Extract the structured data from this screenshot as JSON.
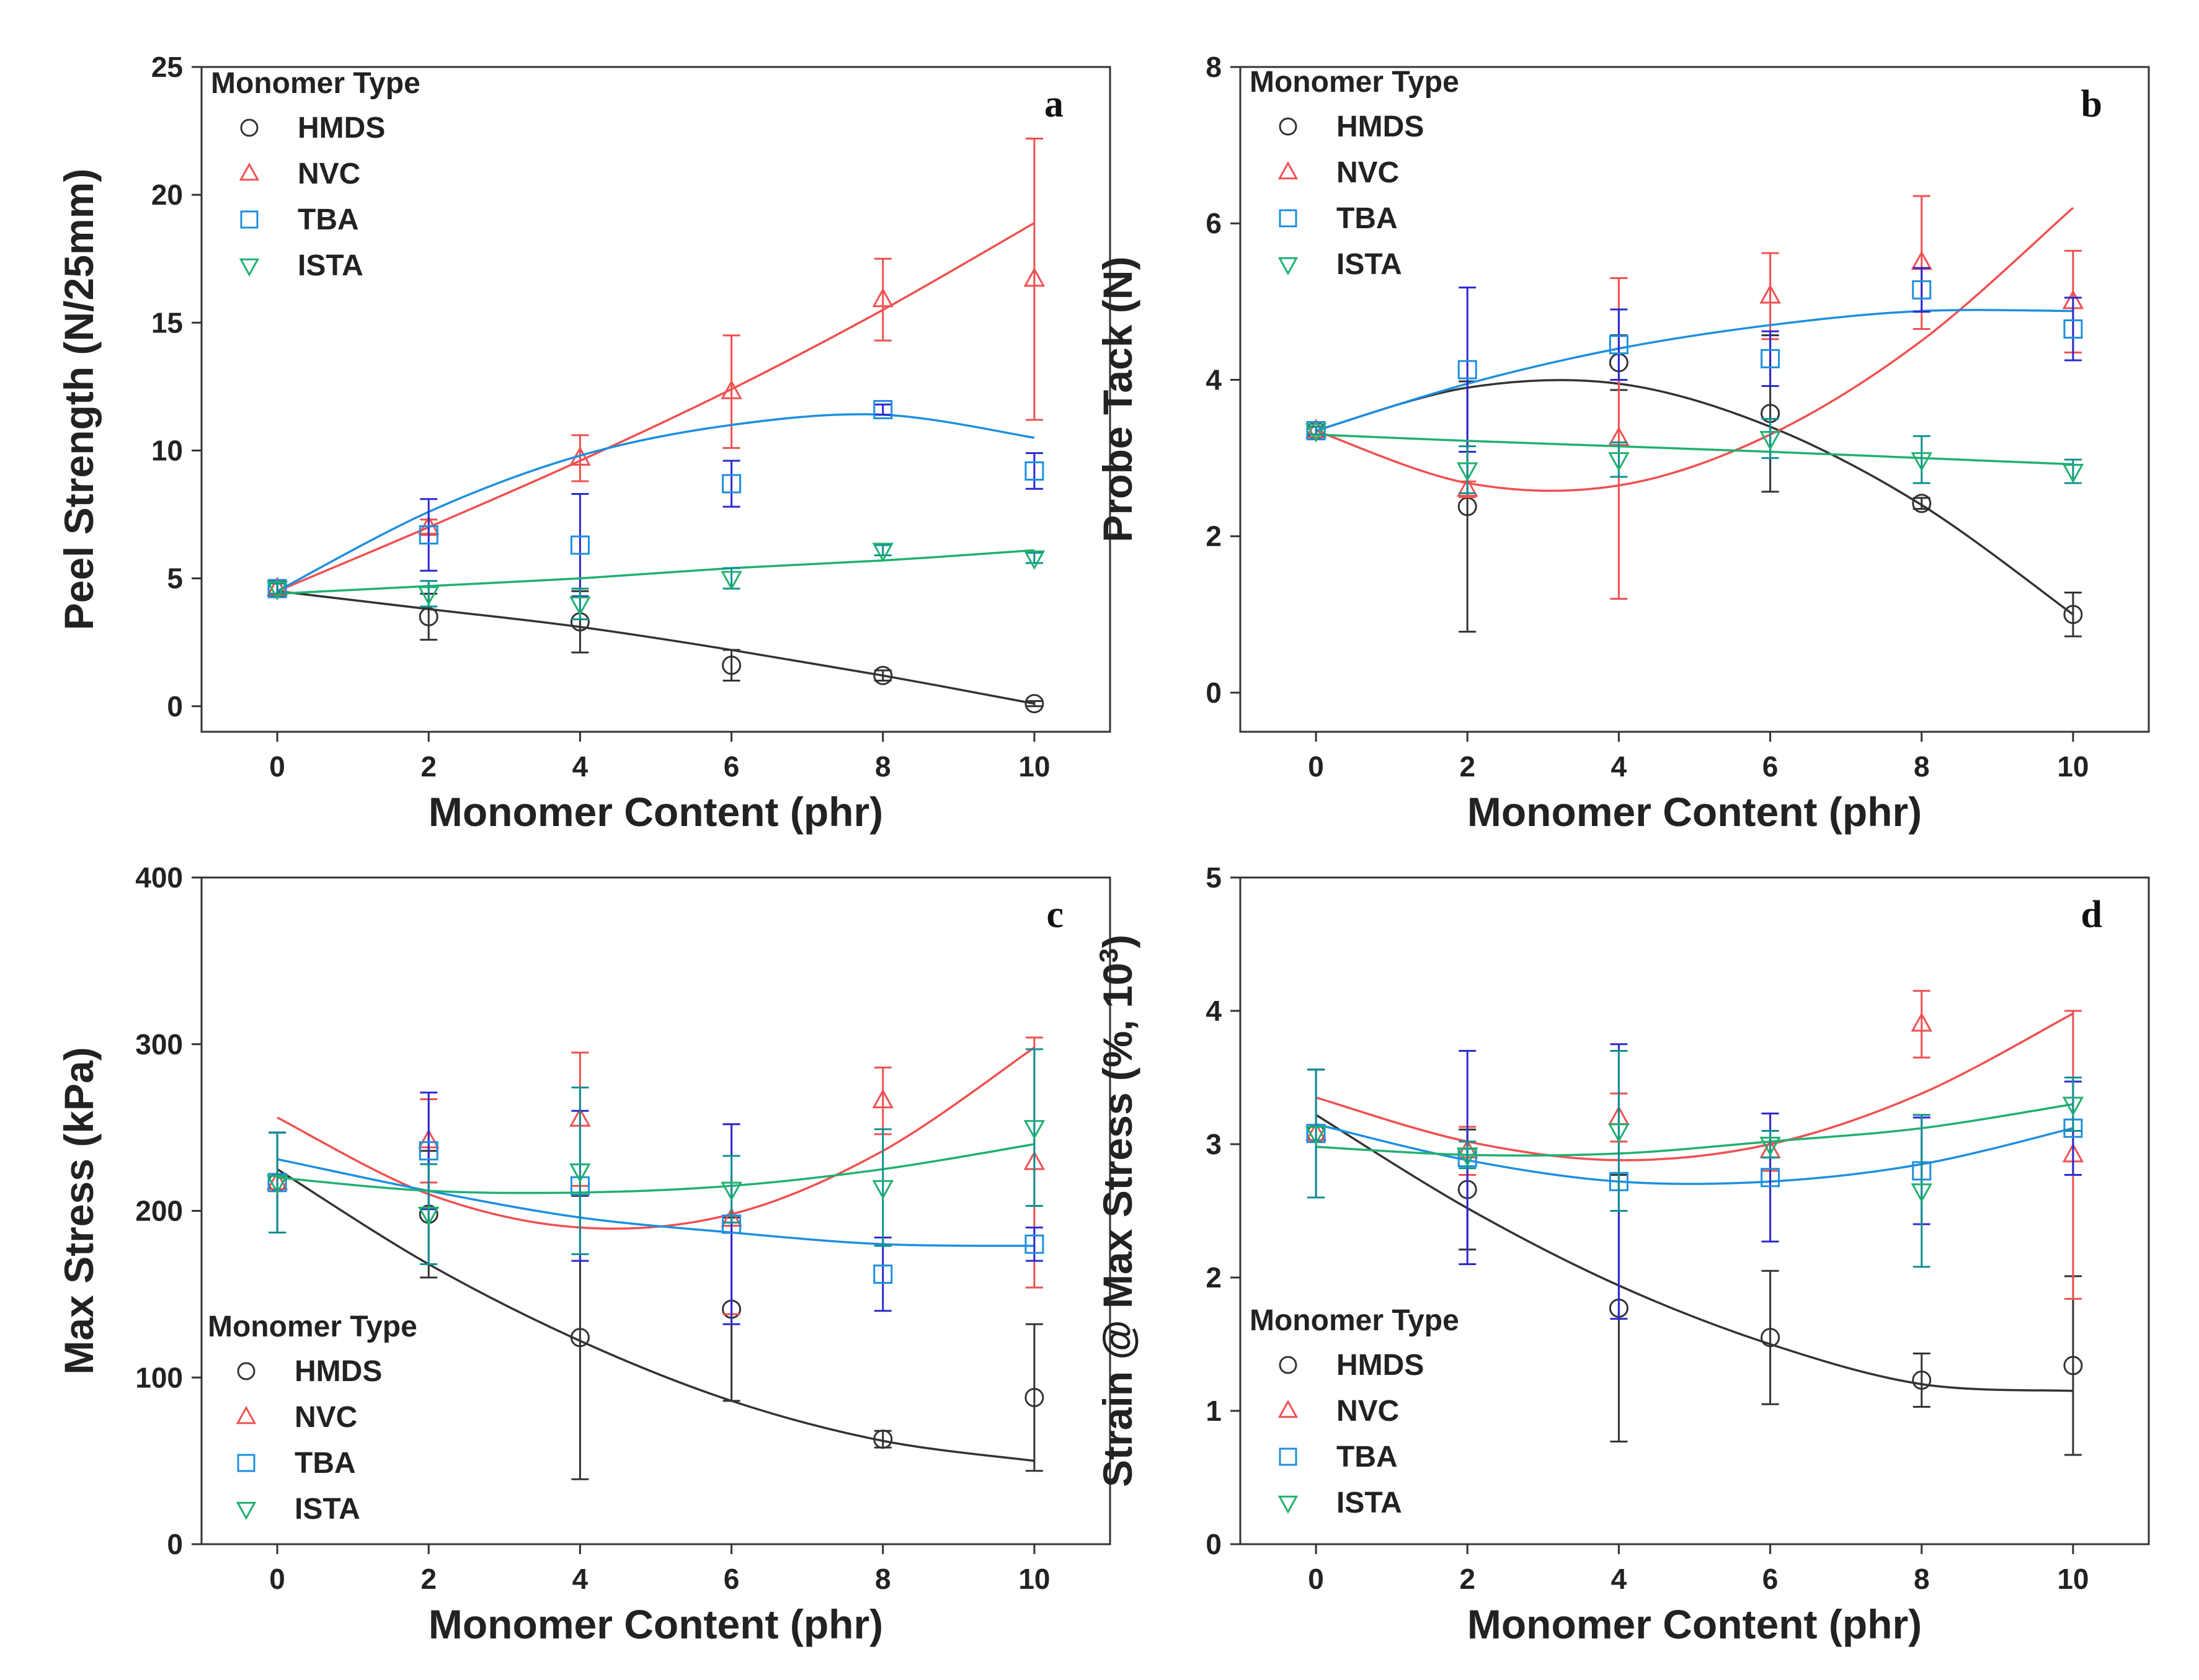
{
  "colors": {
    "HMDS": "#333333",
    "NVC": "#f05050",
    "TBA": "#1e8fe0",
    "ISTA": "#20b070",
    "TBA_err": "#2a2ad0",
    "ISTA_err": "#109090"
  },
  "chart_data": [
    {
      "id": "a",
      "type": "scatter",
      "panel_tag": "a",
      "xlabel": "Monomer Content (phr)",
      "ylabel": "Peel Strength (N/25mm)",
      "ylabel_sup": "",
      "ylabel_suffix": "",
      "xlim": [
        -1,
        11
      ],
      "ylim": [
        -1,
        25
      ],
      "xticks": [
        0,
        2,
        4,
        6,
        8,
        10
      ],
      "yticks": [
        0,
        5,
        10,
        15,
        20,
        25
      ],
      "legend": {
        "title": "Monomer Type",
        "position": "top-left",
        "entries": [
          "HMDS",
          "NVC",
          "TBA",
          "ISTA"
        ]
      },
      "x": [
        0,
        2,
        4,
        6,
        8,
        10
      ],
      "series": [
        {
          "name": "HMDS",
          "marker": "circle",
          "values": [
            4.6,
            3.5,
            3.3,
            1.6,
            1.2,
            0.1
          ],
          "errors": [
            0.3,
            0.9,
            1.2,
            0.6,
            0.2,
            0.1
          ],
          "fit": [
            4.5,
            3.8,
            3.1,
            2.2,
            1.2,
            0.1
          ]
        },
        {
          "name": "NVC",
          "marker": "triangle-up",
          "values": [
            4.6,
            7.0,
            9.7,
            12.3,
            15.9,
            16.7
          ],
          "errors": [
            0.2,
            0.3,
            0.9,
            2.2,
            1.6,
            5.5
          ],
          "fit": [
            4.5,
            7.0,
            9.6,
            12.4,
            15.5,
            18.9
          ]
        },
        {
          "name": "TBA",
          "marker": "square",
          "values": [
            4.6,
            6.7,
            6.3,
            8.7,
            11.6,
            9.2
          ],
          "errors": [
            0.2,
            1.4,
            2.0,
            0.9,
            0.2,
            0.7
          ],
          "fit": [
            4.5,
            7.6,
            9.8,
            11.0,
            11.4,
            10.5
          ]
        },
        {
          "name": "ISTA",
          "marker": "triangle-down",
          "values": [
            4.6,
            4.4,
            4.0,
            5.0,
            6.1,
            5.8
          ],
          "errors": [
            0.2,
            0.5,
            0.6,
            0.4,
            0.2,
            0.2
          ],
          "fit": [
            4.4,
            4.7,
            5.0,
            5.4,
            5.7,
            6.1
          ]
        }
      ]
    },
    {
      "id": "b",
      "type": "scatter",
      "panel_tag": "b",
      "xlabel": "Monomer Content (phr)",
      "ylabel": "Probe Tack (N)",
      "ylabel_sup": "",
      "ylabel_suffix": "",
      "xlim": [
        -1,
        11
      ],
      "ylim": [
        -0.5,
        8
      ],
      "xticks": [
        0,
        2,
        4,
        6,
        8,
        10
      ],
      "yticks": [
        0,
        2,
        4,
        6,
        8
      ],
      "legend": {
        "title": "Monomer Type",
        "position": "top-left",
        "entries": [
          "HMDS",
          "NVC",
          "TBA",
          "ISTA"
        ]
      },
      "x": [
        0,
        2,
        4,
        6,
        8,
        10
      ],
      "series": [
        {
          "name": "HMDS",
          "marker": "circle",
          "values": [
            3.35,
            2.38,
            4.22,
            3.57,
            2.42,
            1.0
          ],
          "errors": [
            0.05,
            1.6,
            0.35,
            1.0,
            0.07,
            0.28
          ],
          "fit": [
            3.35,
            3.9,
            3.95,
            3.4,
            2.4,
            1.0
          ]
        },
        {
          "name": "NVC",
          "marker": "triangle-up",
          "values": [
            3.35,
            2.6,
            3.25,
            5.07,
            5.5,
            5.0
          ],
          "errors": [
            0.05,
            0.1,
            2.05,
            0.55,
            0.85,
            0.65
          ],
          "fit": [
            3.35,
            2.68,
            2.65,
            3.3,
            4.5,
            6.2
          ]
        },
        {
          "name": "TBA",
          "marker": "square",
          "values": [
            3.35,
            4.13,
            4.45,
            4.27,
            5.15,
            4.65
          ],
          "errors": [
            0.05,
            1.05,
            0.45,
            0.35,
            0.28,
            0.4
          ],
          "fit": [
            3.35,
            3.95,
            4.4,
            4.7,
            4.88,
            4.88
          ]
        },
        {
          "name": "ISTA",
          "marker": "triangle-down",
          "values": [
            3.35,
            2.85,
            2.98,
            3.25,
            2.98,
            2.83
          ],
          "errors": [
            0.05,
            0.3,
            0.22,
            0.25,
            0.3,
            0.15
          ],
          "fit": [
            3.3,
            3.22,
            3.15,
            3.08,
            3.0,
            2.92
          ]
        }
      ]
    },
    {
      "id": "c",
      "type": "scatter",
      "panel_tag": "c",
      "xlabel": "Monomer Content (phr)",
      "ylabel": "Max Stress (kPa)",
      "ylabel_sup": "",
      "ylabel_suffix": "",
      "xlim": [
        -1,
        11
      ],
      "ylim": [
        0,
        400
      ],
      "xticks": [
        0,
        2,
        4,
        6,
        8,
        10
      ],
      "yticks": [
        0,
        100,
        200,
        300,
        400
      ],
      "legend": {
        "title": "Monomer Type",
        "position": "bottom-left",
        "entries": [
          "HMDS",
          "NVC",
          "TBA",
          "ISTA"
        ]
      },
      "x": [
        0,
        2,
        4,
        6,
        8,
        10
      ],
      "series": [
        {
          "name": "HMDS",
          "marker": "circle",
          "values": [
            217,
            198,
            124,
            141,
            63,
            88
          ],
          "errors": [
            30,
            38,
            85,
            55,
            5,
            44
          ],
          "fit": [
            225,
            168,
            122,
            86,
            62,
            50
          ]
        },
        {
          "name": "NVC",
          "marker": "triangle-up",
          "values": [
            217,
            242,
            255,
            195,
            266,
            229
          ],
          "errors": [
            30,
            25,
            40,
            57,
            20,
            75
          ],
          "fit": [
            256,
            210,
            190,
            198,
            236,
            298
          ]
        },
        {
          "name": "TBA",
          "marker": "square",
          "values": [
            217,
            236,
            215,
            192,
            162,
            180
          ],
          "errors": [
            30,
            35,
            45,
            60,
            22,
            10
          ],
          "fit": [
            231,
            212,
            196,
            187,
            180,
            179
          ]
        },
        {
          "name": "ISTA",
          "marker": "triangle-down",
          "values": [
            217,
            198,
            224,
            213,
            214,
            250
          ],
          "errors": [
            30,
            30,
            50,
            20,
            35,
            47
          ],
          "fit": [
            220,
            212,
            211,
            215,
            225,
            240
          ]
        }
      ]
    },
    {
      "id": "d",
      "type": "scatter",
      "panel_tag": "d",
      "xlabel": "Monomer Content (phr)",
      "ylabel": "Strain @ Max Stress (%, 10",
      "ylabel_sup": "3",
      "ylabel_suffix": ")",
      "xlim": [
        -1,
        11
      ],
      "ylim": [
        0,
        5
      ],
      "xticks": [
        0,
        2,
        4,
        6,
        8,
        10
      ],
      "yticks": [
        0,
        1,
        2,
        3,
        4,
        5
      ],
      "legend": {
        "title": "Monomer Type",
        "position": "bottom-left",
        "entries": [
          "HMDS",
          "NVC",
          "TBA",
          "ISTA"
        ]
      },
      "x": [
        0,
        2,
        4,
        6,
        8,
        10
      ],
      "series": [
        {
          "name": "HMDS",
          "marker": "circle",
          "values": [
            3.08,
            2.66,
            1.77,
            1.55,
            1.23,
            1.34
          ],
          "errors": [
            0.48,
            0.45,
            1.0,
            0.5,
            0.2,
            0.67
          ],
          "fit": [
            3.22,
            2.52,
            1.94,
            1.5,
            1.2,
            1.15
          ]
        },
        {
          "name": "NVC",
          "marker": "triangle-up",
          "values": [
            3.08,
            2.95,
            3.2,
            2.95,
            3.9,
            2.92
          ],
          "errors": [
            0.48,
            0.18,
            0.18,
            0.15,
            0.25,
            1.08
          ],
          "fit": [
            3.35,
            3.02,
            2.88,
            3.0,
            3.38,
            3.98
          ]
        },
        {
          "name": "TBA",
          "marker": "square",
          "values": [
            3.08,
            2.9,
            2.72,
            2.75,
            2.8,
            3.12
          ],
          "errors": [
            0.48,
            0.8,
            1.03,
            0.48,
            0.4,
            0.35
          ],
          "fit": [
            3.15,
            2.88,
            2.72,
            2.72,
            2.85,
            3.12
          ]
        },
        {
          "name": "ISTA",
          "marker": "triangle-down",
          "values": [
            3.08,
            2.92,
            3.1,
            3.0,
            2.65,
            3.3
          ],
          "errors": [
            0.48,
            0.1,
            0.6,
            0.1,
            0.57,
            0.2
          ],
          "fit": [
            2.98,
            2.92,
            2.93,
            3.02,
            3.12,
            3.3
          ]
        }
      ]
    }
  ]
}
